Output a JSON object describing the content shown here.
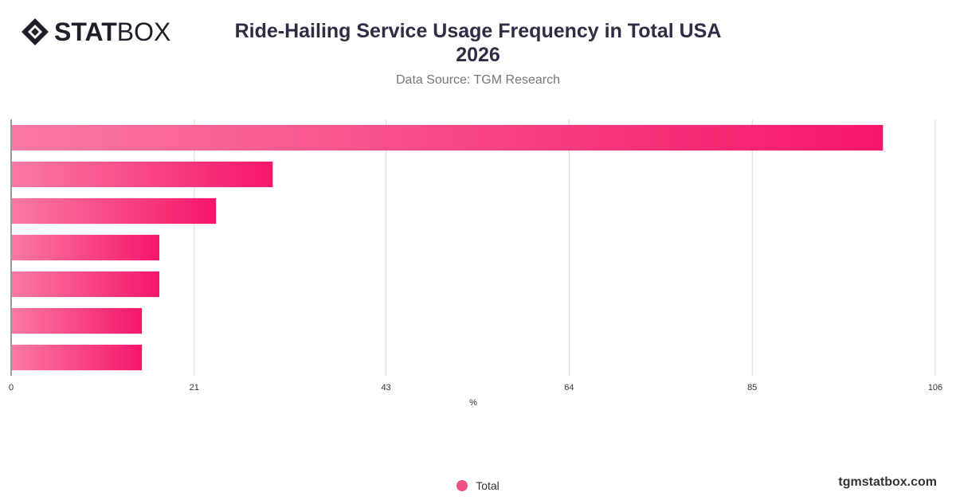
{
  "brand": {
    "logo_bold": "STAT",
    "logo_light": "BOX",
    "footer": "tgmstatbox.com"
  },
  "header": {
    "title_line1": "Ride-Hailing Service Usage Frequency in Total USA",
    "title_line2": "2026",
    "subtitle": "Data Source: TGM Research"
  },
  "colors": {
    "bar_start": "#fb7aa5",
    "bar_end": "#f5166a",
    "grid": "#d9d9d9",
    "axis": "#333333"
  },
  "chart_data": {
    "type": "bar",
    "orientation": "horizontal",
    "categories": [
      "",
      "",
      "",
      "",
      "",
      "",
      ""
    ],
    "series": [
      {
        "name": "Total",
        "values": [
          100,
          30,
          23.5,
          17,
          17,
          15,
          15
        ]
      }
    ],
    "xlabel": "%",
    "xlim": [
      0,
      106
    ],
    "xticks": [
      0,
      21,
      43,
      64,
      85,
      106
    ],
    "grid": true,
    "legend": "bottom-center"
  }
}
